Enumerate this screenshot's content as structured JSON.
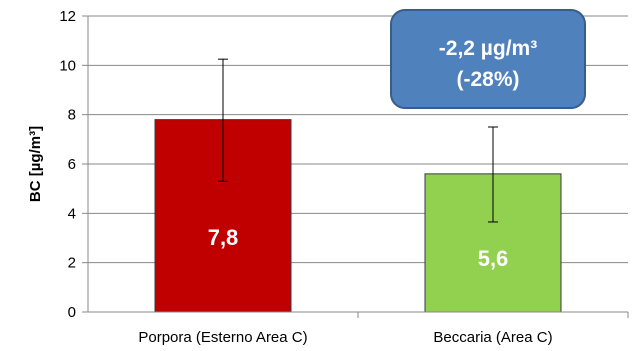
{
  "chart_data": {
    "type": "bar",
    "categories": [
      "Porpora (Esterno Area C)",
      "Beccaria (Area C)"
    ],
    "values": [
      7.8,
      5.6
    ],
    "value_labels": [
      "7,8",
      "5,6"
    ],
    "error_bars": [
      {
        "low": 5.3,
        "high": 10.25
      },
      {
        "low": 3.65,
        "high": 7.5
      }
    ],
    "colors": [
      "#c00000",
      "#92d050"
    ],
    "ylabel": "BC [µg/m³]",
    "ylim": [
      0,
      12
    ],
    "yticks": [
      0,
      2,
      4,
      6,
      8,
      10,
      12
    ],
    "grid": true,
    "annotation": {
      "line1": "-2,2 µg/m³",
      "line2": "(-28%)",
      "fill": "#4f81bd"
    }
  }
}
